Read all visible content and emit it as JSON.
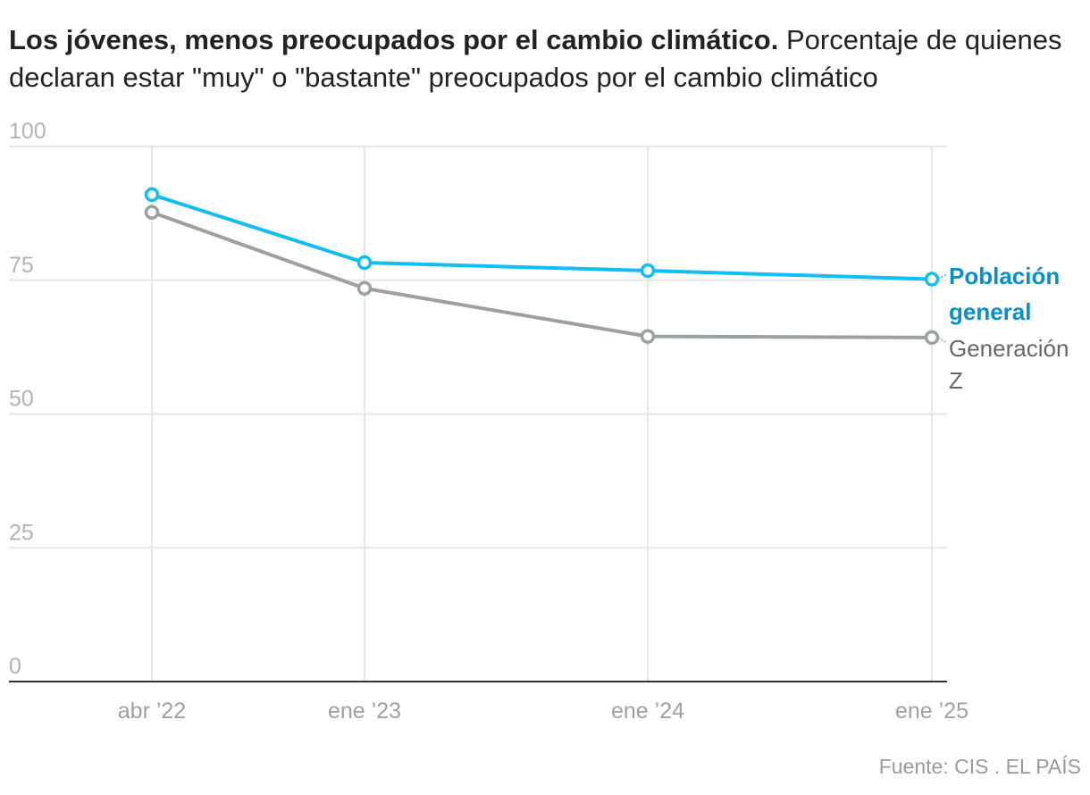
{
  "chart_data": {
    "type": "line",
    "title": "Los jóvenes, menos preocupados por el cambio climático.",
    "subtitle": "Porcentaje de quienes declaran estar \"muy\" o \"bastante\" preocupados por el cambio climático",
    "x": [
      "abr '22",
      "ene '23",
      "ene '24",
      "ene '25"
    ],
    "x_tick_labels": [
      "abr ’22",
      "ene ’23",
      "ene ’24",
      "ene ’25"
    ],
    "y_tick_labels": [
      "0",
      "25",
      "50",
      "75",
      "100"
    ],
    "ylim": [
      0,
      100
    ],
    "grid": true,
    "series": [
      {
        "name": "Población general",
        "label_lines": [
          "Población",
          "general"
        ],
        "color": "#12bdf2",
        "label_color": "#0a8ec7",
        "values": [
          91,
          78.3,
          76.8,
          75.2
        ]
      },
      {
        "name": "Generación Z",
        "label_lines": [
          "Generación",
          "Z"
        ],
        "color": "#9aa1a1",
        "label_color": "#666666",
        "values": [
          87.7,
          73.5,
          64.5,
          64.3
        ]
      }
    ],
    "source": "Fuente: CIS . EL PAÍS"
  }
}
